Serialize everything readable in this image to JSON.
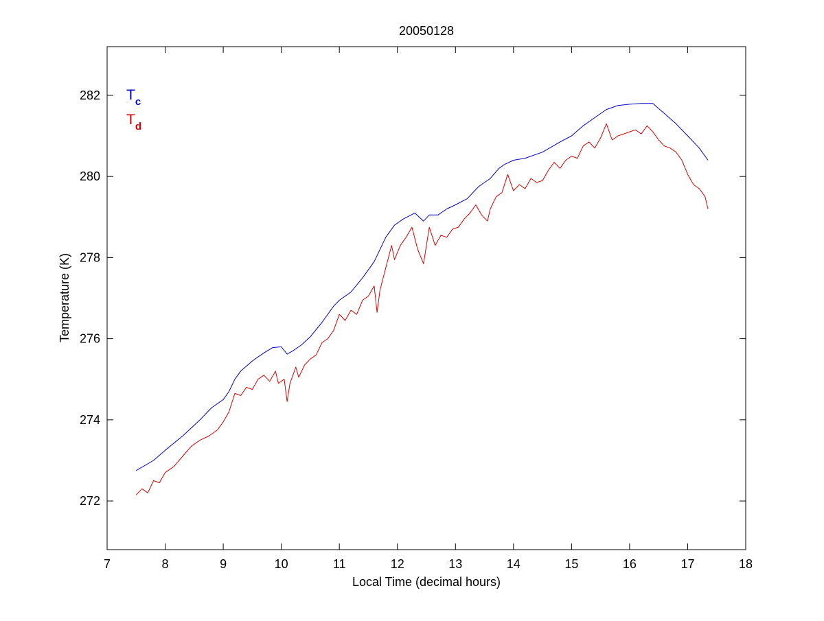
{
  "chart_data": {
    "type": "line",
    "title": "20050128",
    "xlabel": "Local Time (decimal hours)",
    "ylabel": "Temperature (K)",
    "xlim": [
      7,
      18
    ],
    "ylim": [
      270.8,
      283.2
    ],
    "xticks": [
      7,
      8,
      9,
      10,
      11,
      12,
      13,
      14,
      15,
      16,
      17,
      18
    ],
    "yticks": [
      272,
      274,
      276,
      278,
      280,
      282
    ],
    "grid": false,
    "legend": {
      "placement": "top-left",
      "entries": [
        {
          "base": "T",
          "sub": "c",
          "color": "#0000cc"
        },
        {
          "base": "T",
          "sub": "d",
          "color": "#dd0000"
        }
      ]
    },
    "series": [
      {
        "key": "Tc",
        "color": "#0000cc",
        "x": [
          7.5,
          7.8,
          8.0,
          8.3,
          8.6,
          8.8,
          9.0,
          9.1,
          9.2,
          9.3,
          9.5,
          9.7,
          9.85,
          10.0,
          10.1,
          10.2,
          10.35,
          10.5,
          10.7,
          10.9,
          11.0,
          11.2,
          11.4,
          11.6,
          11.8,
          11.95,
          12.1,
          12.3,
          12.45,
          12.55,
          12.7,
          12.85,
          13.0,
          13.2,
          13.4,
          13.6,
          13.75,
          13.85,
          14.0,
          14.2,
          14.5,
          14.8,
          15.0,
          15.2,
          15.4,
          15.6,
          15.8,
          16.0,
          16.2,
          16.4,
          16.6,
          16.8,
          17.0,
          17.2,
          17.35
        ],
        "y": [
          272.75,
          273.0,
          273.25,
          273.6,
          274.0,
          274.3,
          274.5,
          274.7,
          275.0,
          275.2,
          275.45,
          275.65,
          275.78,
          275.8,
          275.62,
          275.7,
          275.85,
          276.05,
          276.4,
          276.8,
          276.95,
          277.15,
          277.5,
          277.9,
          278.5,
          278.8,
          278.95,
          279.1,
          278.9,
          279.05,
          279.05,
          279.2,
          279.3,
          279.45,
          279.75,
          279.95,
          280.2,
          280.3,
          280.4,
          280.45,
          280.6,
          280.85,
          281.0,
          281.25,
          281.45,
          281.65,
          281.75,
          281.78,
          281.8,
          281.8,
          281.55,
          281.3,
          281.0,
          280.7,
          280.4
        ]
      },
      {
        "key": "Td",
        "color": "#dd0000",
        "x": [
          7.5,
          7.6,
          7.7,
          7.8,
          7.9,
          8.0,
          8.15,
          8.3,
          8.45,
          8.6,
          8.75,
          8.9,
          9.0,
          9.1,
          9.2,
          9.3,
          9.4,
          9.5,
          9.6,
          9.7,
          9.8,
          9.9,
          9.95,
          10.05,
          10.1,
          10.15,
          10.25,
          10.3,
          10.4,
          10.5,
          10.6,
          10.7,
          10.8,
          10.9,
          11.0,
          11.1,
          11.2,
          11.3,
          11.4,
          11.5,
          11.6,
          11.65,
          11.7,
          11.8,
          11.9,
          11.95,
          12.05,
          12.15,
          12.25,
          12.35,
          12.45,
          12.55,
          12.65,
          12.75,
          12.85,
          12.95,
          13.05,
          13.15,
          13.25,
          13.35,
          13.45,
          13.55,
          13.6,
          13.7,
          13.8,
          13.9,
          14.0,
          14.1,
          14.2,
          14.3,
          14.4,
          14.5,
          14.6,
          14.7,
          14.8,
          14.9,
          15.0,
          15.1,
          15.2,
          15.3,
          15.4,
          15.5,
          15.6,
          15.7,
          15.8,
          15.9,
          16.0,
          16.1,
          16.2,
          16.3,
          16.4,
          16.5,
          16.6,
          16.7,
          16.8,
          16.9,
          17.0,
          17.1,
          17.2,
          17.3,
          17.35
        ],
        "y": [
          272.15,
          272.3,
          272.2,
          272.5,
          272.45,
          272.7,
          272.85,
          273.1,
          273.35,
          273.5,
          273.6,
          273.75,
          273.95,
          274.2,
          274.65,
          274.6,
          274.8,
          274.75,
          275.0,
          275.1,
          274.95,
          275.2,
          274.9,
          275.0,
          274.45,
          274.9,
          275.3,
          275.05,
          275.35,
          275.5,
          275.6,
          275.9,
          276.0,
          276.2,
          276.6,
          276.45,
          276.7,
          276.6,
          276.95,
          277.05,
          277.3,
          276.65,
          277.2,
          277.75,
          278.3,
          277.95,
          278.3,
          278.5,
          278.75,
          278.2,
          277.85,
          278.75,
          278.3,
          278.55,
          278.5,
          278.7,
          278.75,
          278.95,
          279.1,
          279.3,
          279.05,
          278.9,
          279.2,
          279.5,
          279.6,
          280.05,
          279.65,
          279.8,
          279.7,
          279.95,
          279.85,
          279.9,
          280.15,
          280.35,
          280.2,
          280.4,
          280.5,
          280.45,
          280.75,
          280.85,
          280.7,
          280.95,
          281.3,
          280.9,
          281.0,
          281.05,
          281.1,
          281.15,
          281.05,
          281.25,
          281.1,
          280.9,
          280.75,
          280.7,
          280.6,
          280.4,
          280.05,
          279.8,
          279.7,
          279.5,
          279.2
        ]
      }
    ]
  }
}
